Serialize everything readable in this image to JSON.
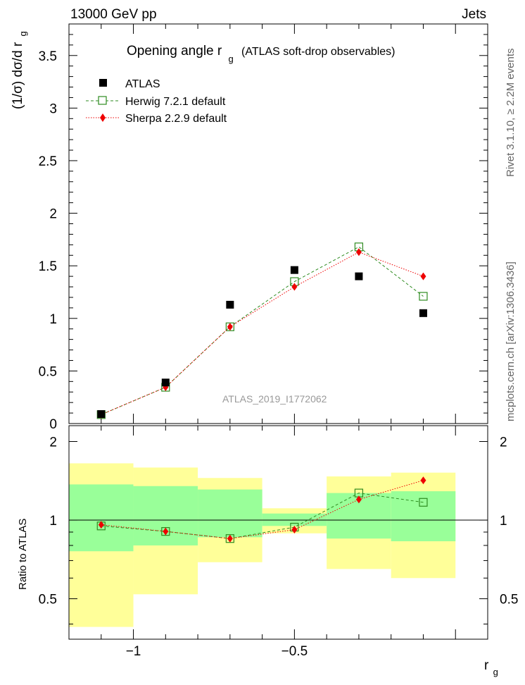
{
  "header": {
    "left": "13000 GeV pp",
    "right": "Jets"
  },
  "side_labels": {
    "rivet": "Rivet 3.1.10, ≥ 2.2M events",
    "mcplots": "mcplots.cern.ch [arXiv:1306.3436]"
  },
  "chart_data": [
    {
      "type": "scatter",
      "title": "Opening angle r",
      "title_sub": "g",
      "title_suffix": "(ATLAS soft-drop observables)",
      "ylabel": "(1/σ) dσ/d r",
      "ylabel_sub": "g",
      "watermark": "ATLAS_2019_I1772062",
      "xlim": [
        -1.2,
        0.1
      ],
      "ylim": [
        0,
        3.8
      ],
      "yticks": [
        "0",
        "0.5",
        "1",
        "1.5",
        "2",
        "2.5",
        "3",
        "3.5"
      ],
      "x": [
        -1.1,
        -0.9,
        -0.7,
        -0.5,
        -0.3,
        -0.1
      ],
      "series": [
        {
          "name": "ATLAS",
          "color": "#000000",
          "marker": "square-filled",
          "values": [
            0.09,
            0.39,
            1.13,
            1.46,
            1.4,
            1.05
          ]
        },
        {
          "name": "Herwig 7.2.1 default",
          "color": "#2e8b20",
          "marker": "square-open",
          "line": "dashed",
          "values": [
            0.085,
            0.345,
            0.92,
            1.35,
            1.68,
            1.21
          ]
        },
        {
          "name": "Sherpa 2.2.9 default",
          "color": "#ee0000",
          "marker": "diamond-filled",
          "line": "dotted",
          "values": [
            0.085,
            0.345,
            0.92,
            1.3,
            1.63,
            1.4
          ]
        }
      ]
    },
    {
      "type": "scatter",
      "ylabel": "Ratio to ATLAS",
      "xlabel": "r",
      "xlabel_sub": "g",
      "xlim": [
        -1.2,
        0.1
      ],
      "ylim": [
        0.35,
        2.3
      ],
      "xticks": [
        "−1",
        "−0.5"
      ],
      "yticks": [
        "0.5",
        "1",
        "2"
      ],
      "bins": [
        [
          -1.2,
          -1.0
        ],
        [
          -1.0,
          -0.8
        ],
        [
          -0.8,
          -0.6
        ],
        [
          -0.6,
          -0.4
        ],
        [
          -0.4,
          -0.2
        ],
        [
          -0.2,
          0.0
        ]
      ],
      "band_green": [
        [
          0.76,
          1.37
        ],
        [
          0.8,
          1.35
        ],
        [
          0.86,
          1.31
        ],
        [
          0.95,
          1.06
        ],
        [
          0.85,
          1.27
        ],
        [
          0.83,
          1.29
        ]
      ],
      "band_yellow": [
        [
          0.39,
          1.65
        ],
        [
          0.52,
          1.59
        ],
        [
          0.69,
          1.45
        ],
        [
          0.89,
          1.11
        ],
        [
          0.65,
          1.47
        ],
        [
          0.6,
          1.52
        ]
      ],
      "x": [
        -1.1,
        -0.9,
        -0.7,
        -0.5,
        -0.3,
        -0.1
      ],
      "series": [
        {
          "name": "Herwig 7.2.1 default",
          "color": "#2e8b20",
          "marker": "square-open",
          "line": "dashed",
          "values": [
            0.95,
            0.905,
            0.85,
            0.94,
            1.27,
            1.17
          ]
        },
        {
          "name": "Sherpa 2.2.9 default",
          "color": "#ee0000",
          "marker": "diamond-filled",
          "line": "dotted",
          "values": [
            0.96,
            0.905,
            0.85,
            0.92,
            1.2,
            1.42
          ]
        }
      ]
    }
  ]
}
